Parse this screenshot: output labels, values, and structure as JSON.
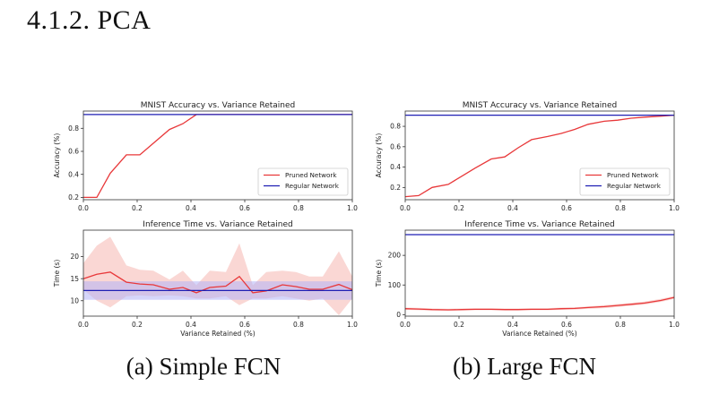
{
  "heading": "4.1.2. PCA",
  "captions": {
    "a": "(a) Simple FCN",
    "b": "(b) Large FCN"
  },
  "colors": {
    "pruned": "#e8383a",
    "regular": "#1f1fb4",
    "pruned_band": "#f5b7b1",
    "regular_band": "#b3b3f5"
  },
  "chart_data": [
    {
      "id": "a-accuracy",
      "type": "line",
      "title": "MNIST Accuracy vs. Variance Retained",
      "xlabel": "",
      "ylabel": "Accuracy (%)",
      "xlim": [
        0,
        1
      ],
      "ylim": [
        0.18,
        0.95
      ],
      "xticks": [
        0.0,
        0.2,
        0.4,
        0.6,
        0.8,
        1.0
      ],
      "yticks": [
        0.2,
        0.4,
        0.6,
        0.8
      ],
      "legend": "bottom-right",
      "series": [
        {
          "name": "Pruned Network",
          "color": "pruned",
          "x": [
            0.0,
            0.05,
            0.1,
            0.16,
            0.21,
            0.26,
            0.32,
            0.37,
            0.42,
            0.47,
            0.53,
            0.58,
            0.63,
            0.68,
            0.74,
            0.79,
            0.84,
            0.89,
            0.95,
            1.0
          ],
          "y": [
            0.2,
            0.2,
            0.41,
            0.57,
            0.57,
            0.67,
            0.79,
            0.84,
            0.92,
            0.92,
            0.92,
            0.92,
            0.92,
            0.92,
            0.92,
            0.92,
            0.92,
            0.92,
            0.92,
            0.92
          ]
        },
        {
          "name": "Regular Network",
          "color": "regular",
          "x": [
            0.0,
            1.0
          ],
          "y": [
            0.92,
            0.92
          ]
        }
      ]
    },
    {
      "id": "a-time",
      "type": "line",
      "title": "Inference Time vs. Variance Retained",
      "xlabel": "Variance Retained (%)",
      "ylabel": "Time (s)",
      "xlim": [
        0,
        1
      ],
      "ylim": [
        6.5,
        26
      ],
      "xticks": [
        0.0,
        0.2,
        0.4,
        0.6,
        0.8,
        1.0
      ],
      "yticks": [
        10,
        15,
        20
      ],
      "series": [
        {
          "name": "Pruned Network",
          "color": "pruned",
          "x": [
            0.0,
            0.05,
            0.1,
            0.16,
            0.21,
            0.26,
            0.32,
            0.37,
            0.42,
            0.47,
            0.53,
            0.58,
            0.63,
            0.68,
            0.74,
            0.79,
            0.84,
            0.89,
            0.95,
            1.0
          ],
          "y": [
            15.0,
            16.0,
            16.5,
            14.2,
            13.8,
            13.6,
            12.6,
            13.0,
            11.8,
            13.0,
            13.3,
            15.5,
            11.8,
            12.2,
            13.6,
            13.2,
            12.6,
            12.6,
            13.7,
            12.5
          ],
          "lower": [
            12.5,
            10.0,
            8.5,
            11.0,
            11.2,
            11.0,
            11.2,
            11.0,
            10.5,
            10.5,
            11.0,
            9.0,
            10.5,
            10.5,
            11.0,
            10.5,
            10.0,
            10.5,
            6.7,
            10.5
          ],
          "upper": [
            18.5,
            22.5,
            24.5,
            18.0,
            17.0,
            16.8,
            14.8,
            16.8,
            13.5,
            16.8,
            16.5,
            23.0,
            13.5,
            16.5,
            16.8,
            16.5,
            15.5,
            15.5,
            21.2,
            15.5
          ]
        },
        {
          "name": "Regular Network",
          "color": "regular",
          "x": [
            0.0,
            1.0
          ],
          "y": [
            12.3,
            12.3
          ],
          "lower": [
            10.2,
            10.2
          ],
          "upper": [
            14.4,
            14.4
          ]
        }
      ]
    },
    {
      "id": "b-accuracy",
      "type": "line",
      "title": "MNIST Accuracy vs. Variance Retained",
      "xlabel": "",
      "ylabel": "Accuracy (%)",
      "xlim": [
        0,
        1
      ],
      "ylim": [
        0.08,
        0.95
      ],
      "xticks": [
        0.0,
        0.2,
        0.4,
        0.6,
        0.8,
        1.0
      ],
      "yticks": [
        0.2,
        0.4,
        0.6,
        0.8
      ],
      "legend": "bottom-right",
      "series": [
        {
          "name": "Pruned Network",
          "color": "pruned",
          "x": [
            0.0,
            0.05,
            0.1,
            0.16,
            0.21,
            0.26,
            0.32,
            0.37,
            0.42,
            0.47,
            0.53,
            0.58,
            0.63,
            0.68,
            0.74,
            0.79,
            0.84,
            0.89,
            0.95,
            1.0
          ],
          "y": [
            0.11,
            0.12,
            0.2,
            0.23,
            0.31,
            0.39,
            0.48,
            0.5,
            0.59,
            0.67,
            0.7,
            0.73,
            0.77,
            0.82,
            0.85,
            0.86,
            0.88,
            0.89,
            0.9,
            0.91
          ]
        },
        {
          "name": "Regular Network",
          "color": "regular",
          "x": [
            0.0,
            1.0
          ],
          "y": [
            0.91,
            0.91
          ]
        }
      ]
    },
    {
      "id": "b-time",
      "type": "line",
      "title": "Inference Time vs. Variance Retained",
      "xlabel": "Variance Retained (%)",
      "ylabel": "Time (s)",
      "xlim": [
        0,
        1
      ],
      "ylim": [
        -5,
        285
      ],
      "xticks": [
        0.0,
        0.2,
        0.4,
        0.6,
        0.8,
        1.0
      ],
      "yticks": [
        0,
        100,
        200
      ],
      "series": [
        {
          "name": "Pruned Network",
          "color": "pruned",
          "x": [
            0.0,
            0.05,
            0.1,
            0.16,
            0.21,
            0.26,
            0.32,
            0.37,
            0.42,
            0.47,
            0.53,
            0.58,
            0.63,
            0.68,
            0.74,
            0.79,
            0.84,
            0.89,
            0.95,
            1.0
          ],
          "y": [
            20,
            19,
            17,
            16,
            17,
            18,
            18,
            17,
            17,
            18,
            18,
            20,
            21,
            24,
            27,
            31,
            35,
            39,
            48,
            58
          ],
          "lower": [
            16,
            15,
            14,
            13,
            14,
            15,
            15,
            14,
            14,
            15,
            15,
            16,
            17,
            20,
            22,
            26,
            30,
            34,
            43,
            53
          ],
          "upper": [
            24,
            23,
            21,
            20,
            21,
            22,
            22,
            21,
            21,
            22,
            22,
            24,
            25,
            28,
            32,
            36,
            40,
            44,
            53,
            63
          ]
        },
        {
          "name": "Regular Network",
          "color": "regular",
          "x": [
            0.0,
            1.0
          ],
          "y": [
            270,
            270
          ]
        }
      ]
    }
  ]
}
